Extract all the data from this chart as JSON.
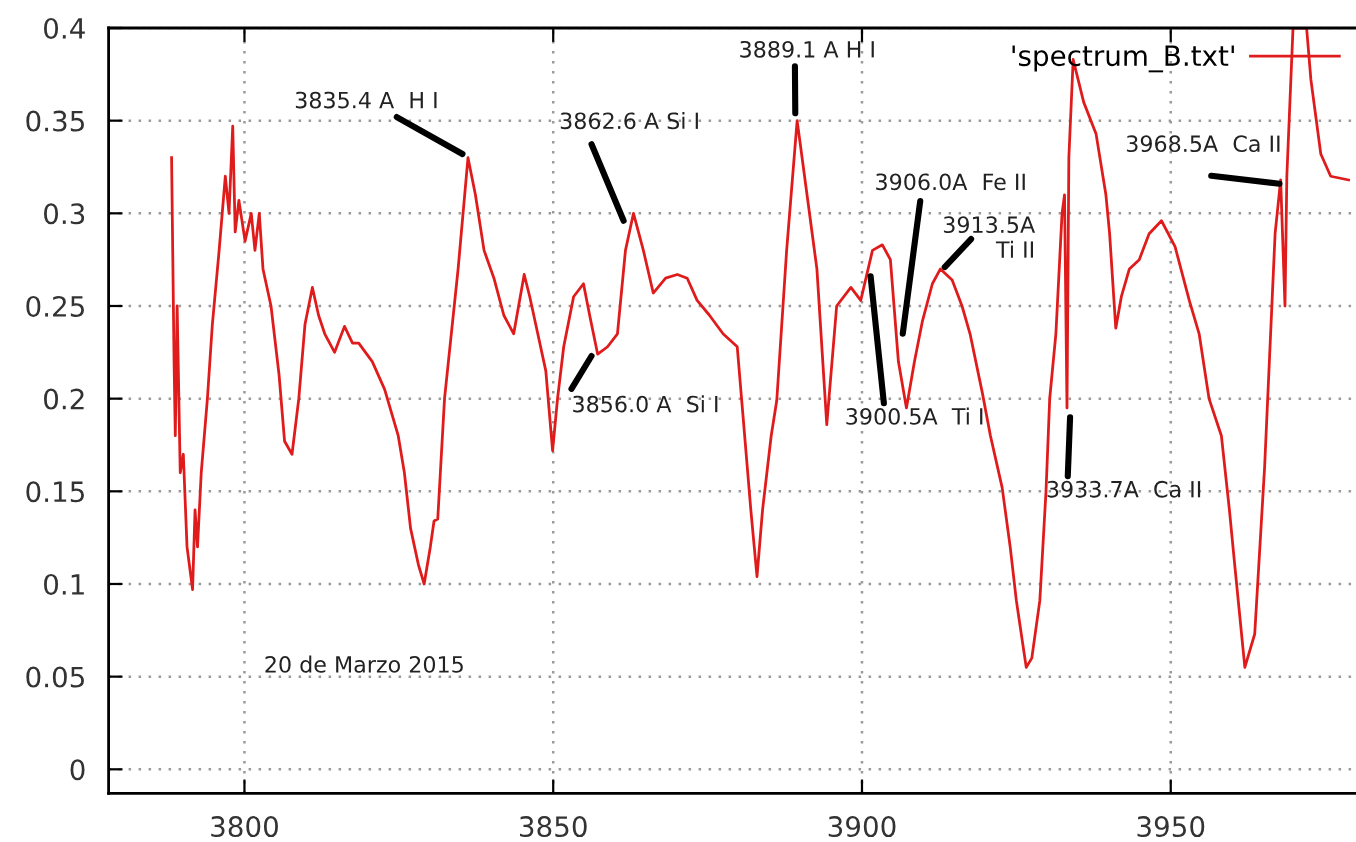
{
  "chart_data": {
    "type": "line",
    "series": [
      {
        "name": "'spectrum_B.txt'",
        "color": "#e01b1b",
        "x": [
          3788.2,
          3788.6,
          3788.8,
          3789.1,
          3789.6,
          3790.1,
          3790.7,
          3791.6,
          3792.0,
          3792.4,
          3793.0,
          3794.0,
          3794.8,
          3795.9,
          3796.9,
          3797.5,
          3798.1,
          3798.5,
          3799.1,
          3800.1,
          3801.1,
          3801.7,
          3802.4,
          3803.0,
          3804.3,
          3805.6,
          3806.5,
          3807.7,
          3808.8,
          3809.8,
          3811.0,
          3812.0,
          3813.0,
          3814.6,
          3816.2,
          3817.5,
          3818.5,
          3820.7,
          3822.7,
          3824.9,
          3825.9,
          3826.9,
          3828.2,
          3829.1,
          3830.1,
          3830.7,
          3831.3,
          3832.4,
          3834.6,
          3836.2,
          3837.4,
          3838.8,
          3840.4,
          3842.0,
          3843.6,
          3845.3,
          3846.2,
          3847.5,
          3848.8,
          3849.9,
          3850.7,
          3851.7,
          3853.3,
          3854.9,
          3855.9,
          3857.2,
          3858.8,
          3860.4,
          3861.7,
          3863.0,
          3864.6,
          3866.2,
          3868.2,
          3870.1,
          3871.7,
          3873.3,
          3875.3,
          3877.5,
          3879.8,
          3880.7,
          3882.0,
          3883.0,
          3883.9,
          3885.3,
          3886.2,
          3887.8,
          3889.5,
          3891.1,
          3892.7,
          3894.3,
          3895.9,
          3898.2,
          3899.8,
          3901.7,
          3903.3,
          3904.6,
          3905.9,
          3907.2,
          3908.5,
          3909.8,
          3911.4,
          3912.7,
          3914.6,
          3916.2,
          3917.5,
          3919.5,
          3920.8,
          3922.7,
          3924.0,
          3925.0,
          3926.6,
          3927.5,
          3928.8,
          3929.8,
          3930.4,
          3931.4,
          3932.4,
          3932.8,
          3933.2,
          3933.5,
          3934.2,
          3935.9,
          3937.9,
          3939.5,
          3940.1,
          3941.1,
          3942.0,
          3943.3,
          3944.9,
          3946.5,
          3948.5,
          3950.7,
          3953.0,
          3954.6,
          3956.2,
          3958.2,
          3959.5,
          3960.4,
          3962.0,
          3963.6,
          3965.2,
          3966.9,
          3967.8,
          3968.5,
          3968.8,
          3969.8,
          3972.0,
          3972.7,
          3974.3,
          3975.9,
          3978.8
        ],
        "values": [
          0.33,
          0.22,
          0.18,
          0.25,
          0.16,
          0.17,
          0.12,
          0.097,
          0.14,
          0.12,
          0.16,
          0.2,
          0.24,
          0.28,
          0.32,
          0.3,
          0.347,
          0.29,
          0.307,
          0.285,
          0.3,
          0.28,
          0.3,
          0.27,
          0.25,
          0.213,
          0.177,
          0.17,
          0.2,
          0.24,
          0.26,
          0.245,
          0.235,
          0.225,
          0.239,
          0.23,
          0.23,
          0.22,
          0.205,
          0.18,
          0.16,
          0.13,
          0.11,
          0.1,
          0.12,
          0.134,
          0.135,
          0.2,
          0.27,
          0.33,
          0.31,
          0.28,
          0.265,
          0.245,
          0.235,
          0.267,
          0.255,
          0.235,
          0.215,
          0.172,
          0.2,
          0.228,
          0.255,
          0.262,
          0.245,
          0.224,
          0.228,
          0.235,
          0.28,
          0.3,
          0.28,
          0.257,
          0.265,
          0.267,
          0.265,
          0.253,
          0.245,
          0.235,
          0.228,
          0.192,
          0.14,
          0.104,
          0.14,
          0.18,
          0.199,
          0.28,
          0.35,
          0.31,
          0.27,
          0.186,
          0.25,
          0.26,
          0.253,
          0.28,
          0.283,
          0.275,
          0.22,
          0.195,
          0.22,
          0.242,
          0.262,
          0.27,
          0.264,
          0.25,
          0.235,
          0.203,
          0.18,
          0.152,
          0.12,
          0.091,
          0.055,
          0.06,
          0.091,
          0.15,
          0.2,
          0.235,
          0.3,
          0.31,
          0.195,
          0.33,
          0.383,
          0.36,
          0.343,
          0.31,
          0.289,
          0.238,
          0.255,
          0.27,
          0.275,
          0.289,
          0.296,
          0.282,
          0.253,
          0.235,
          0.2,
          0.18,
          0.14,
          0.109,
          0.055,
          0.073,
          0.163,
          0.289,
          0.318,
          0.25,
          0.32,
          0.4,
          0.4,
          0.372,
          0.332,
          0.32,
          0.318
        ]
      }
    ],
    "xlim": [
      3778,
      3980
    ],
    "ylim": [
      -0.013,
      0.4
    ],
    "xticks": [
      3800,
      3850,
      3900,
      3950
    ],
    "yticks": [
      0,
      0.05,
      0.1,
      0.15,
      0.2,
      0.25,
      0.3,
      0.35,
      0.4
    ],
    "grid": true,
    "legend": "top right",
    "marker": "none",
    "line_style": "solid",
    "annotations": [
      {
        "text": "3835.4 A  H I",
        "x": 3835.3,
        "y": 0.332
      },
      {
        "text": "3862.6 A Si I",
        "x": 3861.4,
        "y": 0.296
      },
      {
        "text": "3856.0 A  Si I",
        "x": 3856.2,
        "y": 0.223
      },
      {
        "text": "3889.1 A H I",
        "x": 3889.2,
        "y": 0.354
      },
      {
        "text": "3906.0A  Fe II",
        "x": 3906.6,
        "y": 0.235
      },
      {
        "text": "3913.5A\nTi II",
        "x": 3913.4,
        "y": 0.271
      },
      {
        "text": "3900.5A  Ti I",
        "x": 3901.4,
        "y": 0.266
      },
      {
        "text": "3933.7A  Ca II",
        "x": 3933.7,
        "y": 0.19
      },
      {
        "text": "3968.5A  Ca II",
        "x": 3967.6,
        "y": 0.316
      },
      "20 de Marzo 2015"
    ]
  }
}
